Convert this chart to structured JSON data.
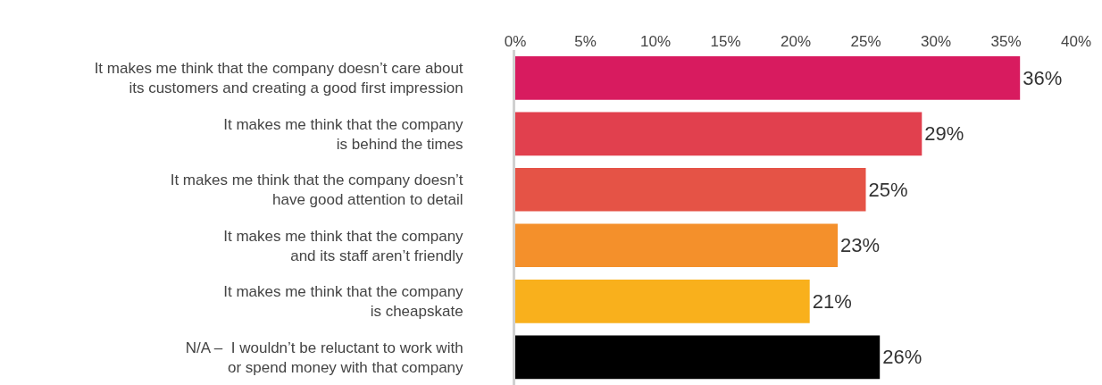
{
  "chart_data": {
    "type": "bar",
    "orientation": "horizontal",
    "categories": [
      "It makes me think that the company doesn’t care about\nits customers and creating a good first impression",
      "It makes me think that the company\nis behind the times",
      "It makes me think that the company doesn’t\nhave good attention to detail",
      "It makes me think that the company\nand its staff aren’t friendly",
      "It makes me think that the company\nis cheapskate",
      "N/A –  I wouldn’t be reluctant to work with\nor spend money with that company"
    ],
    "values": [
      36,
      29,
      25,
      23,
      21,
      26
    ],
    "colors": [
      "#d81b5f",
      "#e1404e",
      "#e55346",
      "#f4902b",
      "#f9b01c",
      "#000000"
    ],
    "value_labels": [
      "36%",
      "29%",
      "25%",
      "23%",
      "21%",
      "26%"
    ],
    "xlim": [
      0,
      40
    ],
    "xticks": [
      {
        "value": 0,
        "label": "0%"
      },
      {
        "value": 5,
        "label": "5%"
      },
      {
        "value": 10,
        "label": "10%"
      },
      {
        "value": 15,
        "label": "15%"
      },
      {
        "value": 20,
        "label": "20%"
      },
      {
        "value": 25,
        "label": "25%"
      },
      {
        "value": 30,
        "label": "30%"
      },
      {
        "value": 35,
        "label": "35%"
      },
      {
        "value": 40,
        "label": "40%"
      }
    ],
    "grid": false,
    "legend": false
  }
}
